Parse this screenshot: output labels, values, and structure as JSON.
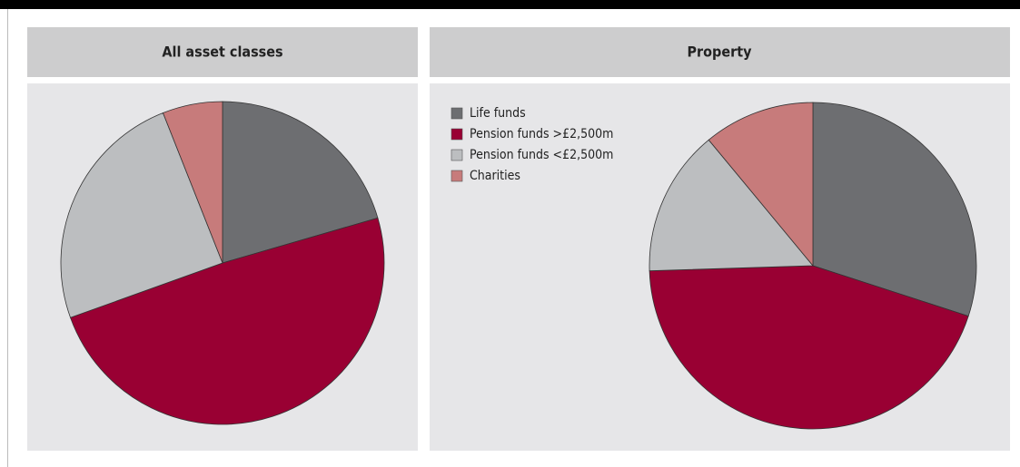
{
  "legend": {
    "labels": [
      "Life funds",
      "Pension funds >£2,500m",
      "Pension funds <£2,500m",
      "Charities"
    ],
    "colors": [
      "#6d6e71",
      "#990033",
      "#bcbec0",
      "#c77b7b"
    ]
  },
  "chart_data": [
    {
      "type": "pie",
      "title": "All asset classes",
      "values": [
        20.5,
        49,
        24.5,
        6
      ]
    },
    {
      "type": "pie",
      "title": "Property",
      "values": [
        30,
        44.5,
        14.5,
        11
      ]
    }
  ]
}
